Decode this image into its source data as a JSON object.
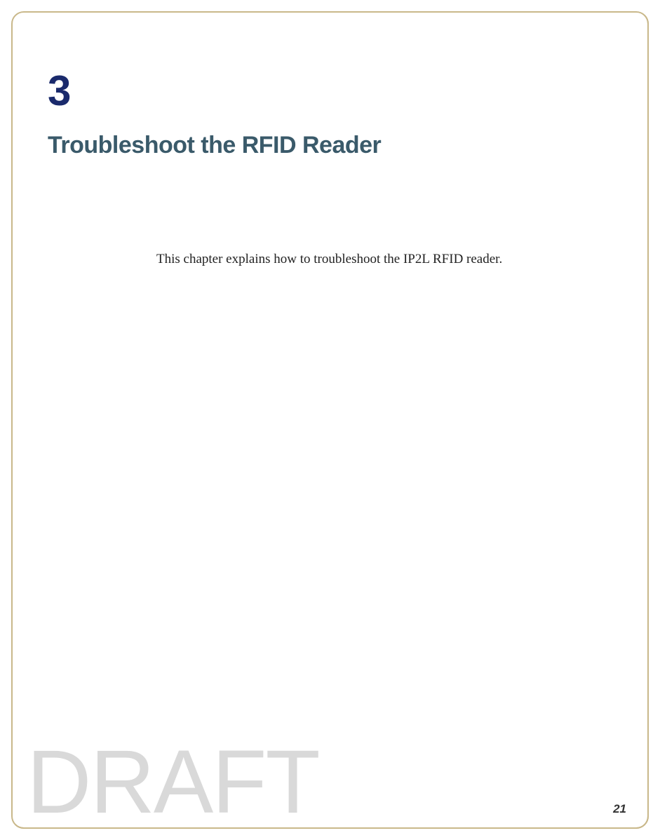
{
  "chapter": {
    "number": "3",
    "title": "Troubleshoot the RFID Reader",
    "intro": "This chapter explains how to troubleshoot the IP2L RFID reader."
  },
  "watermark": "DRAFT",
  "page_number": "21",
  "colors": {
    "border": "#c9b88a",
    "chapter_number": "#1a2a6c",
    "chapter_title": "#3a5a6a",
    "body_text": "#222222",
    "watermark": "#d9d9d9",
    "page_number": "#333333",
    "background": "#ffffff"
  },
  "typography": {
    "chapter_number_size": 60,
    "chapter_title_size": 34,
    "body_size": 19,
    "watermark_size": 128,
    "page_number_size": 17
  }
}
